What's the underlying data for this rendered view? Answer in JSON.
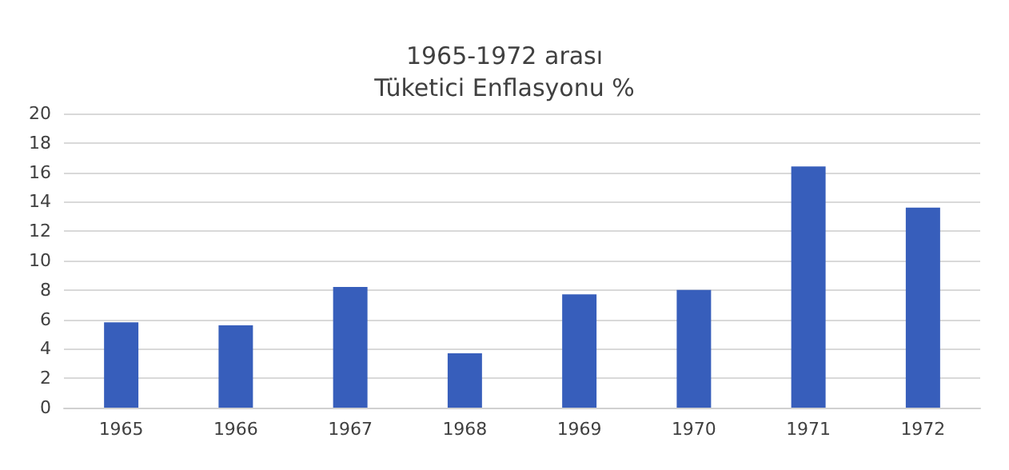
{
  "chart_data": {
    "type": "bar",
    "title": "1965-1972 arası\nTüketici Enflasyonu %",
    "categories": [
      "1965",
      "1966",
      "1967",
      "1968",
      "1969",
      "1970",
      "1971",
      "1972"
    ],
    "values": [
      5.8,
      5.6,
      8.2,
      3.7,
      7.7,
      8.0,
      16.4,
      13.6
    ],
    "color": "#375ebb",
    "ylim": [
      0,
      20
    ],
    "yticks": [
      0,
      2,
      4,
      6,
      8,
      10,
      12,
      14,
      16,
      18,
      20
    ],
    "grid": "y"
  }
}
